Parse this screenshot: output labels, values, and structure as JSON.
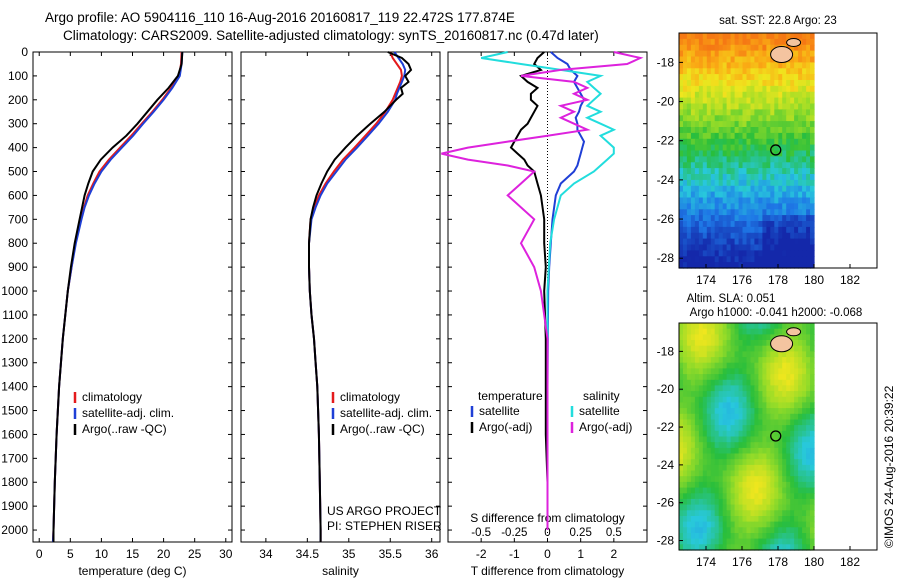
{
  "header": {
    "line1": "Argo profile: AO 5904116_110 16-Aug-2016 20160817_119 22.472S 177.874E",
    "line2": "Climatology: CARS2009. Satellite-adjusted climatology: synTS_20160817.nc (0.47d later)"
  },
  "colors": {
    "climatology": "#e41a1c",
    "satellite": "#1f3fd6",
    "argo": "#000000",
    "sat_salinity": "#22dddd",
    "argo_salinity_diff": "#dd22dd"
  },
  "chart_data": [
    {
      "type": "line",
      "name": "temperature-profile",
      "xlabel": "temperature (deg C)",
      "xlim": [
        -1,
        31
      ],
      "ylim": [
        2050,
        0
      ],
      "x_ticks": [
        "0",
        "5",
        "10",
        "15",
        "20",
        "25",
        "30"
      ],
      "y_ticks": [
        "0",
        "100",
        "200",
        "300",
        "400",
        "500",
        "600",
        "700",
        "800",
        "900",
        "1000",
        "1100",
        "1200",
        "1300",
        "1400",
        "1500",
        "1600",
        "1700",
        "1800",
        "1900",
        "2000"
      ],
      "depth": [
        0,
        50,
        100,
        150,
        200,
        250,
        300,
        350,
        400,
        450,
        500,
        550,
        600,
        650,
        700,
        800,
        900,
        1000,
        1200,
        1400,
        1600,
        1800,
        2000,
        2050
      ],
      "legend": [
        "climatology",
        "satellite-adj. clim.",
        "Argo(..raw -QC)"
      ],
      "series": [
        {
          "name": "climatology",
          "values": [
            22.9,
            22.8,
            22.5,
            21.2,
            19.8,
            18.2,
            16.5,
            14.8,
            13.0,
            11.2,
            9.7,
            8.7,
            7.8,
            7.2,
            6.7,
            5.8,
            5.2,
            4.6,
            3.8,
            3.2,
            2.8,
            2.5,
            2.3,
            2.2
          ]
        },
        {
          "name": "satellite-adj. clim.",
          "values": [
            23.0,
            22.9,
            22.6,
            21.4,
            20.0,
            18.4,
            16.7,
            15.1,
            13.3,
            11.5,
            10.0,
            8.9,
            8.0,
            7.3,
            6.8,
            5.9,
            5.2,
            4.6,
            3.8,
            3.2,
            2.8,
            2.5,
            2.3,
            2.2
          ]
        },
        {
          "name": "Argo(..raw -QC)",
          "values": [
            23.0,
            22.9,
            22.3,
            20.8,
            19.0,
            17.4,
            15.8,
            14.0,
            11.8,
            9.9,
            8.6,
            7.9,
            7.3,
            6.9,
            6.5,
            5.7,
            5.1,
            4.6,
            3.8,
            3.2,
            2.8,
            2.5,
            2.3,
            2.3
          ]
        }
      ]
    },
    {
      "type": "line",
      "name": "salinity-profile",
      "xlabel": "salinity",
      "xlim": [
        33.7,
        36.1
      ],
      "ylim": [
        2050,
        0
      ],
      "x_ticks": [
        "34",
        "34.5",
        "35",
        "35.5",
        "36"
      ],
      "depth": [
        0,
        25,
        50,
        75,
        100,
        125,
        150,
        175,
        200,
        250,
        300,
        350,
        400,
        450,
        500,
        550,
        600,
        650,
        700,
        800,
        900,
        1000,
        1100,
        1200,
        1300,
        1400,
        1600,
        1800,
        2000,
        2050
      ],
      "legend": [
        "climatology",
        "satellite-adj. clim.",
        "Argo(..raw -QC)"
      ],
      "annotations": [
        "US ARGO PROJECT",
        "PI: STEPHEN RISER"
      ],
      "series": [
        {
          "name": "climatology",
          "values": [
            35.5,
            35.53,
            35.58,
            35.63,
            35.64,
            35.62,
            35.59,
            35.56,
            35.53,
            35.44,
            35.33,
            35.2,
            35.07,
            34.93,
            34.82,
            34.72,
            34.64,
            34.58,
            34.54,
            34.52,
            34.52,
            34.53,
            34.55,
            34.58,
            34.6,
            34.62,
            34.64,
            34.65,
            34.66,
            34.66
          ]
        },
        {
          "name": "satellite-adj. clim.",
          "values": [
            35.55,
            35.6,
            35.65,
            35.68,
            35.67,
            35.64,
            35.61,
            35.58,
            35.56,
            35.47,
            35.36,
            35.23,
            35.1,
            34.96,
            34.85,
            34.74,
            34.66,
            34.6,
            34.55,
            34.52,
            34.52,
            34.53,
            34.55,
            34.58,
            34.6,
            34.62,
            34.64,
            34.65,
            34.66,
            34.66
          ]
        },
        {
          "name": "Argo(..raw -QC)",
          "values": [
            35.47,
            35.64,
            35.72,
            35.75,
            35.68,
            35.72,
            35.63,
            35.65,
            35.57,
            35.43,
            35.26,
            35.1,
            34.96,
            34.83,
            34.74,
            34.67,
            34.61,
            34.57,
            34.54,
            34.52,
            34.52,
            34.53,
            34.55,
            34.58,
            34.6,
            34.62,
            34.64,
            34.65,
            34.66,
            34.66
          ]
        }
      ]
    },
    {
      "type": "line",
      "name": "difference-profile",
      "xlabel": "T difference from climatology",
      "top_xlabel": "S difference from climatology",
      "xlim": [
        -3,
        3
      ],
      "ylim": [
        2050,
        0
      ],
      "x_ticks": [
        "-2",
        "-1",
        "0",
        "1",
        "2"
      ],
      "top_ticks": [
        "-0.5",
        "-0.25",
        "0",
        "0.25",
        "0.5"
      ],
      "legend_titles": [
        "temperature",
        "salinity"
      ],
      "legend": [
        "satellite",
        "Argo(-adj)",
        "satellite",
        "Argo(-adj)"
      ],
      "depth": [
        0,
        25,
        50,
        75,
        100,
        125,
        150,
        175,
        200,
        225,
        250,
        275,
        300,
        325,
        350,
        375,
        400,
        425,
        450,
        475,
        500,
        550,
        600,
        700,
        800,
        900,
        1000,
        1200,
        1400,
        1600,
        1800,
        2000
      ],
      "series": [
        {
          "name": "temperature satellite",
          "values": [
            0.1,
            0.3,
            0.6,
            0.7,
            0.9,
            0.8,
            0.9,
            1.0,
            1.1,
            1.0,
            0.95,
            0.85,
            0.9,
            0.9,
            1.0,
            1.1,
            1.05,
            1.0,
            0.95,
            0.9,
            0.8,
            0.4,
            0.25,
            0.15,
            0.1,
            0.05,
            0.02,
            0.01,
            0,
            0,
            0,
            0
          ]
        },
        {
          "name": "temperature Argo(-adj)",
          "values": [
            -0.1,
            -0.3,
            -0.4,
            -0.2,
            -0.8,
            -0.6,
            -0.3,
            -0.5,
            -0.5,
            -0.3,
            -0.4,
            -0.5,
            -0.6,
            -0.8,
            -0.9,
            -1.0,
            -1.1,
            -0.9,
            -0.7,
            -0.6,
            -0.4,
            -0.3,
            -0.2,
            -0.1,
            -0.1,
            -0.05,
            -0.1,
            -0.05,
            -0.05,
            -0.05,
            0,
            0
          ]
        },
        {
          "name": "salinity satellite",
          "values": [
            -0.3,
            -0.5,
            -0.2,
            0.1,
            0.4,
            0.3,
            0.35,
            0.4,
            0.35,
            0.3,
            0.4,
            0.3,
            0.4,
            0.5,
            0.4,
            0.45,
            0.5,
            0.5,
            0.45,
            0.4,
            0.35,
            0.2,
            0.1,
            0.05,
            0.02,
            0.01,
            0,
            0,
            0,
            0,
            0,
            0
          ]
        },
        {
          "name": "salinity Argo(-adj)",
          "values": [
            0.5,
            0.7,
            0.6,
            0.1,
            -0.2,
            0.2,
            0.3,
            0.2,
            0.3,
            0.1,
            0.2,
            0.1,
            0.2,
            0.3,
            0.0,
            -0.3,
            -0.6,
            -0.8,
            -0.6,
            -0.3,
            -0.1,
            -0.2,
            -0.3,
            -0.1,
            -0.2,
            -0.1,
            -0.05,
            0,
            0,
            0,
            0,
            0
          ]
        }
      ]
    },
    {
      "type": "heatmap",
      "name": "sat-sst-map",
      "title": "sat. SST: 22.8 Argo: 23",
      "xlim": [
        172.5,
        183.5
      ],
      "ylim": [
        -28.5,
        -16.5
      ],
      "x_ticks": [
        "174",
        "176",
        "178",
        "180",
        "182"
      ],
      "y_ticks": [
        "-18",
        "-20",
        "-22",
        "-24",
        "-26",
        "-28"
      ],
      "marker": {
        "lon": 177.874,
        "lat": -22.472
      }
    },
    {
      "type": "heatmap",
      "name": "altimetry-sla-map",
      "title": "Altim. SLA: 0.051",
      "subtitle": "Argo h1000: -0.041 h2000: -0.068",
      "xlim": [
        172.5,
        183.5
      ],
      "ylim": [
        -28.5,
        -16.5
      ],
      "x_ticks": [
        "174",
        "176",
        "178",
        "180",
        "182"
      ],
      "y_ticks": [
        "-18",
        "-20",
        "-22",
        "-24",
        "-26",
        "-28"
      ],
      "marker": {
        "lon": 177.874,
        "lat": -22.472
      }
    }
  ],
  "footer": {
    "credit": "©IMOS 24-Aug-2016 20:39:22"
  }
}
